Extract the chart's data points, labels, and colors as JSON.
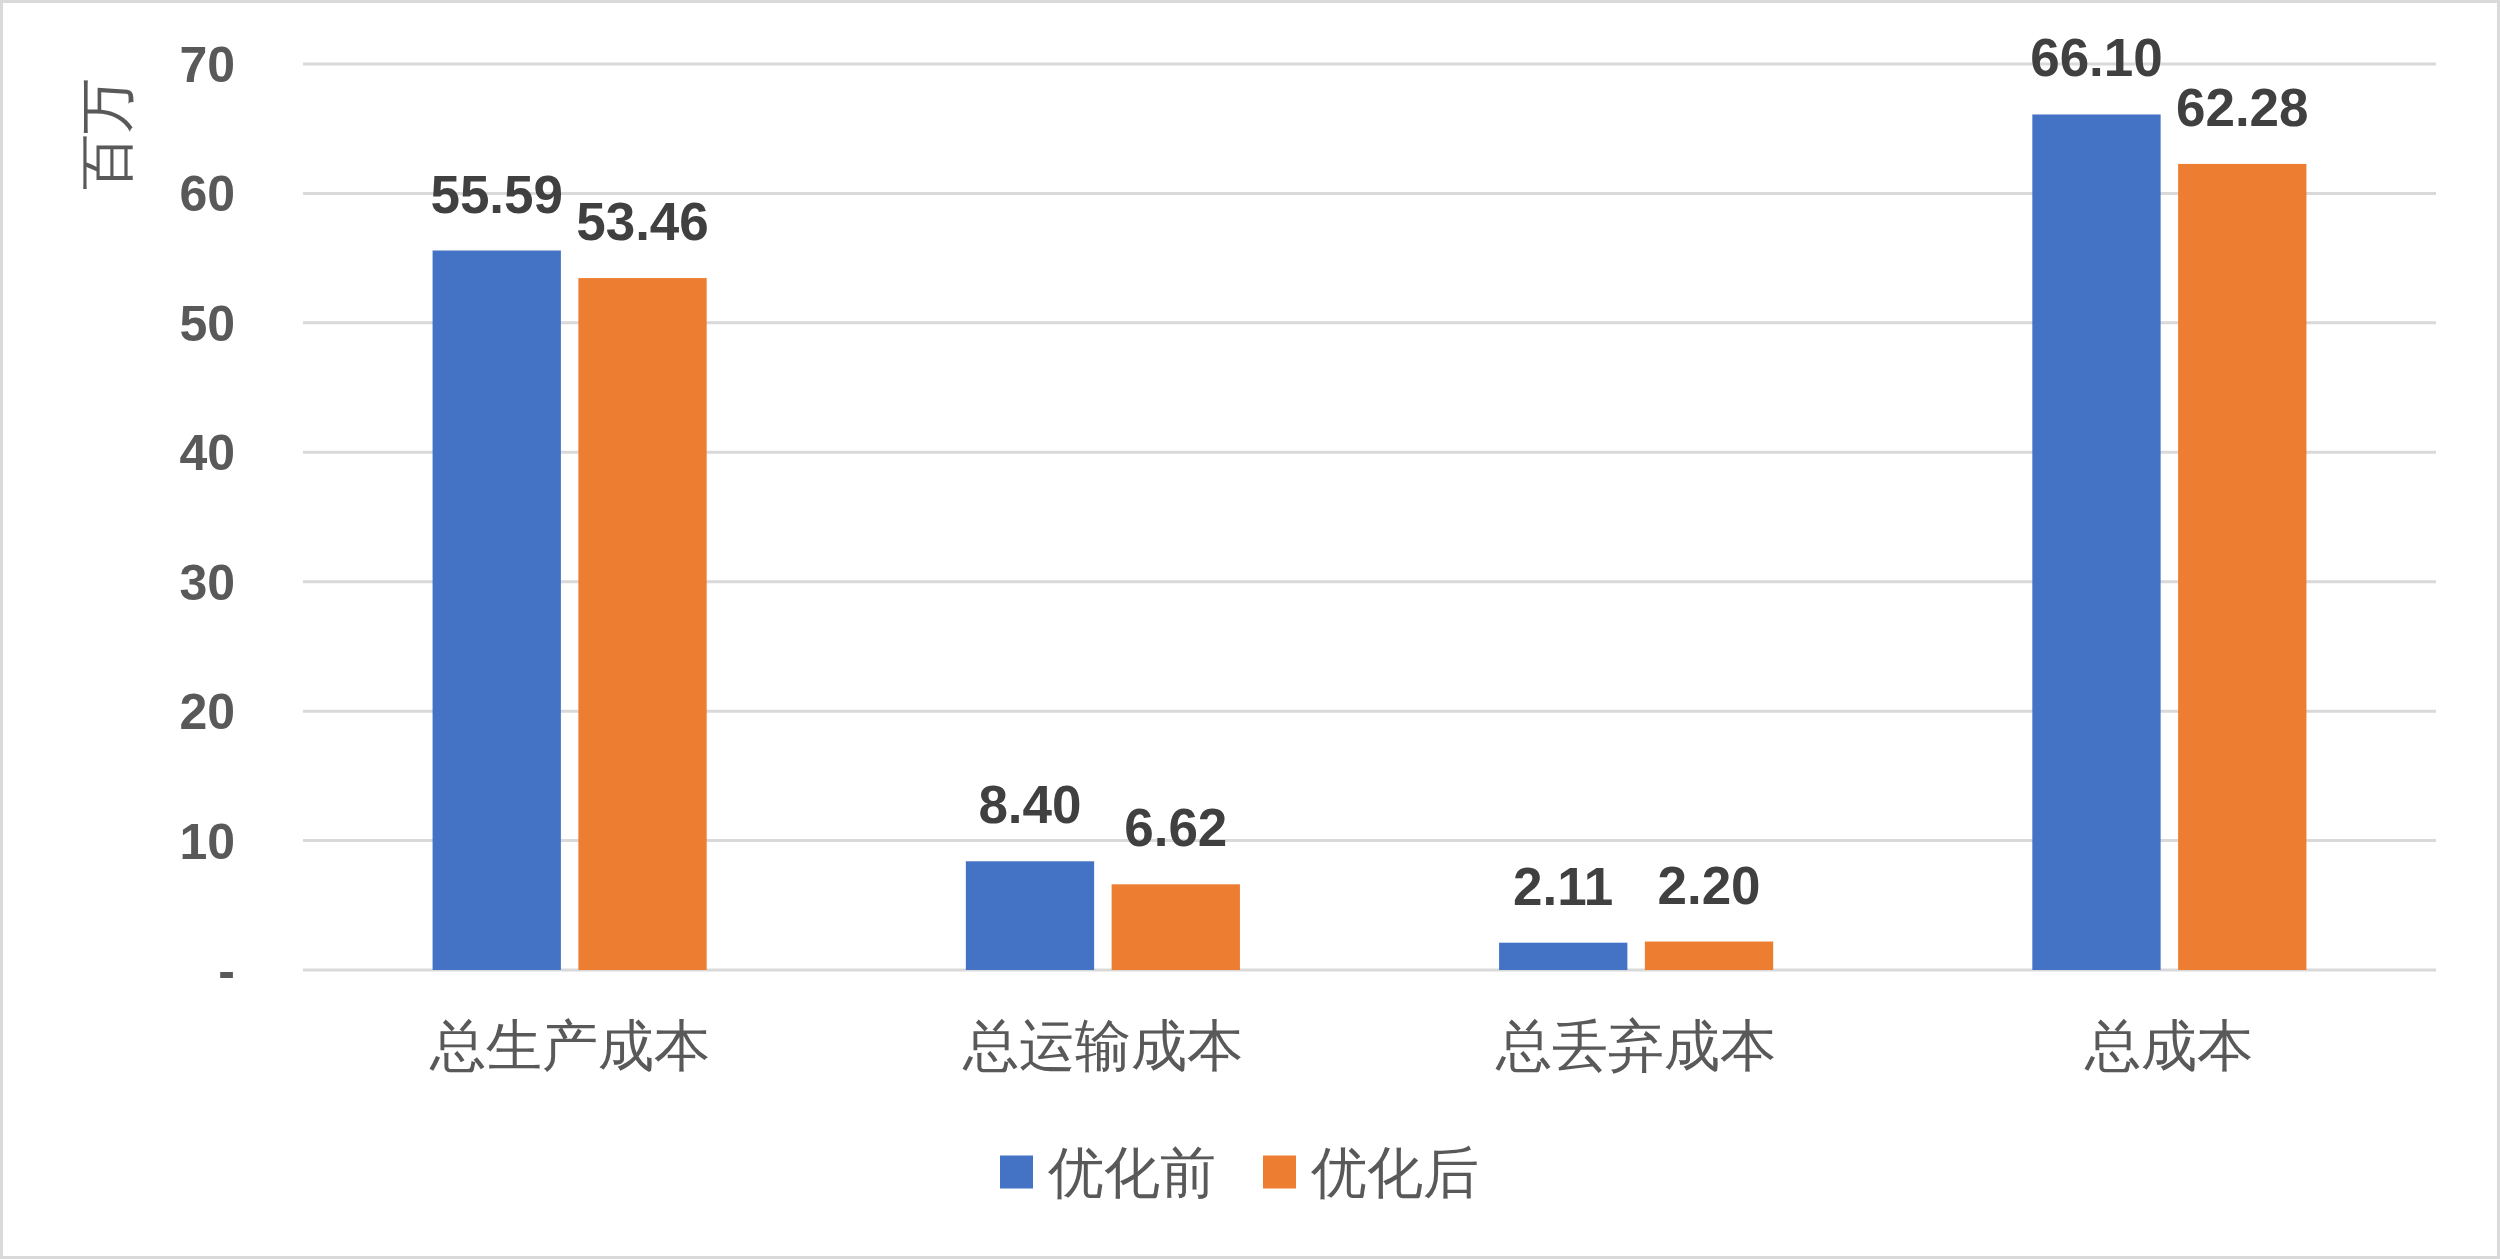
{
  "chart_data": {
    "type": "bar",
    "categories": [
      "总生产成本",
      "总运输成本",
      "总丢弃成本",
      "总成本"
    ],
    "series": [
      {
        "name": "优化前",
        "color": "#4472c4",
        "values": [
          55.59,
          8.4,
          2.11,
          66.1
        ],
        "value_labels": [
          "55.59",
          "8.40",
          "2.11",
          "66.10"
        ]
      },
      {
        "name": "优化后",
        "color": "#ed7d31",
        "values": [
          53.46,
          6.62,
          2.2,
          62.28
        ],
        "value_labels": [
          "53.46",
          "6.62",
          "2.20",
          "62.28"
        ]
      }
    ],
    "ylabel": "百万",
    "ylim": [
      0,
      70
    ],
    "yticks": [
      {
        "value": 0,
        "label": "-"
      },
      10,
      20,
      30,
      40,
      50,
      60,
      70
    ],
    "grid": "y",
    "legend": "bottom"
  }
}
